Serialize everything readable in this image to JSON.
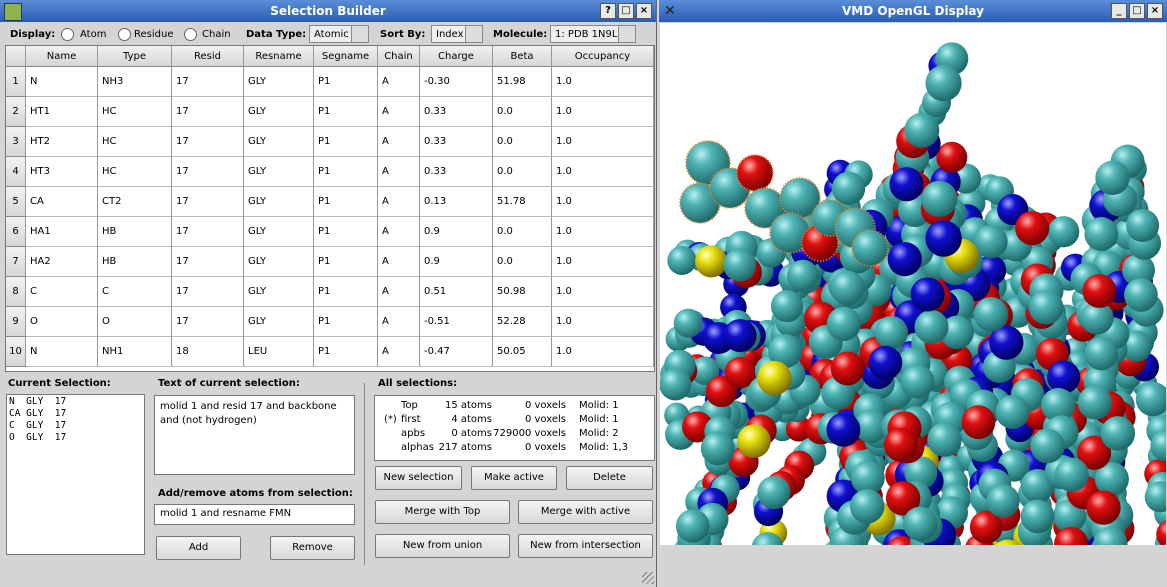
{
  "selection_builder": {
    "title": "Selection Builder",
    "toolbar": {
      "display_label": "Display:",
      "display_options": [
        "Atom",
        "Residue",
        "Chain"
      ],
      "data_type_label": "Data Type:",
      "data_type": "Atomic",
      "sort_by_label": "Sort By:",
      "sort_by": "Index",
      "molecule_label": "Molecule:",
      "molecule": "1: PDB 1N9L"
    },
    "table": {
      "columns": [
        "Name",
        "Type",
        "Resid",
        "Resname",
        "Segname",
        "Chain",
        "Charge",
        "Beta",
        "Occupancy"
      ],
      "row_numbers": [
        "1",
        "2",
        "3",
        "4",
        "5",
        "6",
        "7",
        "8",
        "9",
        "10"
      ],
      "rows": [
        [
          "N",
          "NH3",
          "17",
          "GLY",
          "P1",
          "A",
          "-0.30",
          "51.98",
          "1.0"
        ],
        [
          "HT1",
          "HC",
          "17",
          "GLY",
          "P1",
          "A",
          "0.33",
          "0.0",
          "1.0"
        ],
        [
          "HT2",
          "HC",
          "17",
          "GLY",
          "P1",
          "A",
          "0.33",
          "0.0",
          "1.0"
        ],
        [
          "HT3",
          "HC",
          "17",
          "GLY",
          "P1",
          "A",
          "0.33",
          "0.0",
          "1.0"
        ],
        [
          "CA",
          "CT2",
          "17",
          "GLY",
          "P1",
          "A",
          "0.13",
          "51.78",
          "1.0"
        ],
        [
          "HA1",
          "HB",
          "17",
          "GLY",
          "P1",
          "A",
          "0.9",
          "0.0",
          "1.0"
        ],
        [
          "HA2",
          "HB",
          "17",
          "GLY",
          "P1",
          "A",
          "0.9",
          "0.0",
          "1.0"
        ],
        [
          "C",
          "C",
          "17",
          "GLY",
          "P1",
          "A",
          "0.51",
          "50.98",
          "1.0"
        ],
        [
          "O",
          "O",
          "17",
          "GLY",
          "P1",
          "A",
          "-0.51",
          "52.28",
          "1.0"
        ],
        [
          "N",
          "NH1",
          "18",
          "LEU",
          "P1",
          "A",
          "-0.47",
          "50.05",
          "1.0"
        ]
      ]
    },
    "current_selection": {
      "label": "Current Selection:",
      "items": [
        "N  GLY  17",
        "CA GLY  17",
        "C  GLY  17",
        "O  GLY  17"
      ]
    },
    "selection_text": {
      "label": "Text of current selection:",
      "text": "molid 1 and resid 17 and backbone and (not hydrogen)"
    },
    "add_remove": {
      "label": "Add/remove atoms from selection:",
      "input": "molid 1 and resname FMN",
      "add_button": "Add",
      "remove_button": "Remove"
    },
    "all_selections": {
      "label": "All selections:",
      "rows": [
        {
          "name": "Top",
          "atoms": "15 atoms",
          "voxels": "0 voxels",
          "molid": "Molid: 1"
        },
        {
          "marker": "(*)",
          "name": "first",
          "atoms": "4 atoms",
          "voxels": "0 voxels",
          "molid": "Molid: 1"
        },
        {
          "name": "apbs",
          "atoms": "0 atoms",
          "voxels": "729000 voxels",
          "molid": "Molid: 2"
        },
        {
          "name": "alphas",
          "atoms": "217 atoms",
          "voxels": "0 voxels",
          "molid": "Molid: 1,3"
        }
      ],
      "buttons": [
        "New selection",
        "Make active",
        "Delete",
        "Merge with Top",
        "Merge with active",
        "New from union",
        "New from intersection"
      ]
    }
  },
  "display_window": {
    "title": "VMD OpenGL Display"
  }
}
